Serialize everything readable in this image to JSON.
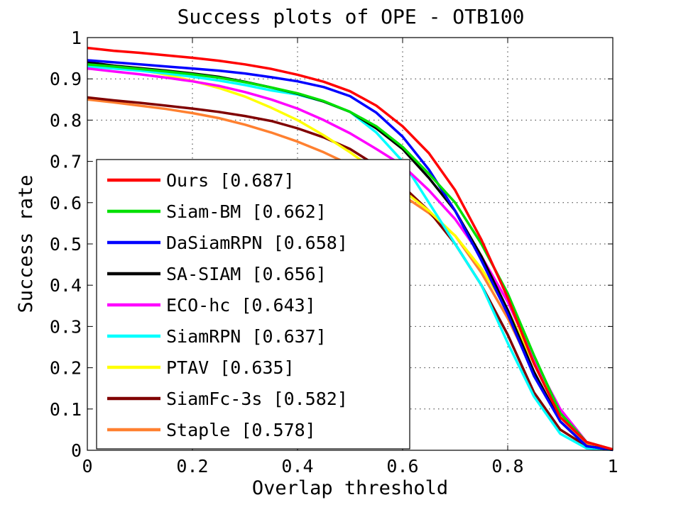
{
  "chart_data": {
    "type": "line",
    "title": "Success plots of OPE - OTB100",
    "xlabel": "Overlap threshold",
    "ylabel": "Success rate",
    "xlim": [
      0,
      1
    ],
    "ylim": [
      0,
      1
    ],
    "xticks": [
      0,
      0.2,
      0.4,
      0.6,
      0.8,
      1
    ],
    "xtick_labels": [
      "0",
      "0.2",
      "0.4",
      "0.6",
      "0.8",
      "1"
    ],
    "yticks": [
      0,
      0.1,
      0.2,
      0.3,
      0.4,
      0.5,
      0.6,
      0.7,
      0.8,
      0.9,
      1
    ],
    "ytick_labels": [
      "0",
      "0.1",
      "0.2",
      "0.3",
      "0.4",
      "0.5",
      "0.6",
      "0.7",
      "0.8",
      "0.9",
      "1"
    ],
    "grid": true,
    "legend_position": "bottom-left",
    "x": [
      0,
      0.05,
      0.1,
      0.15,
      0.2,
      0.25,
      0.3,
      0.35,
      0.4,
      0.45,
      0.5,
      0.55,
      0.6,
      0.65,
      0.7,
      0.75,
      0.8,
      0.85,
      0.9,
      0.95,
      1
    ],
    "series": [
      {
        "name": "Ours [0.687]",
        "color": "#ff0000",
        "values": [
          0.975,
          0.968,
          0.963,
          0.957,
          0.951,
          0.944,
          0.935,
          0.924,
          0.91,
          0.893,
          0.87,
          0.835,
          0.785,
          0.72,
          0.63,
          0.51,
          0.37,
          0.21,
          0.08,
          0.02,
          0.002
        ]
      },
      {
        "name": "Siam-BM [0.662]",
        "color": "#00e000",
        "values": [
          0.935,
          0.93,
          0.924,
          0.918,
          0.911,
          0.903,
          0.892,
          0.879,
          0.865,
          0.846,
          0.82,
          0.785,
          0.735,
          0.67,
          0.6,
          0.5,
          0.38,
          0.23,
          0.09,
          0.02,
          0.002
        ]
      },
      {
        "name": "DaSiamRPN [0.658]",
        "color": "#0000ff",
        "values": [
          0.945,
          0.94,
          0.935,
          0.93,
          0.925,
          0.92,
          0.913,
          0.904,
          0.894,
          0.88,
          0.858,
          0.818,
          0.76,
          0.68,
          0.58,
          0.46,
          0.33,
          0.18,
          0.07,
          0.01,
          0.001
        ]
      },
      {
        "name": "SA-SIAM [0.656]",
        "color": "#000000",
        "values": [
          0.94,
          0.932,
          0.926,
          0.92,
          0.913,
          0.905,
          0.893,
          0.879,
          0.864,
          0.845,
          0.82,
          0.78,
          0.73,
          0.66,
          0.58,
          0.47,
          0.34,
          0.19,
          0.07,
          0.01,
          0.001
        ]
      },
      {
        "name": "ECO-hc [0.643]",
        "color": "#ff00ff",
        "values": [
          0.925,
          0.918,
          0.911,
          0.903,
          0.894,
          0.883,
          0.868,
          0.85,
          0.828,
          0.8,
          0.768,
          0.73,
          0.69,
          0.63,
          0.56,
          0.47,
          0.36,
          0.22,
          0.1,
          0.02,
          0.002
        ]
      },
      {
        "name": "SiamRPN [0.637]",
        "color": "#00ffff",
        "values": [
          0.93,
          0.925,
          0.92,
          0.913,
          0.905,
          0.896,
          0.885,
          0.872,
          0.862,
          0.845,
          0.82,
          0.77,
          0.7,
          0.6,
          0.5,
          0.4,
          0.26,
          0.13,
          0.04,
          0.005,
          0.001
        ]
      },
      {
        "name": "PTAV [0.635]",
        "color": "#ffff00",
        "values": [
          0.94,
          0.932,
          0.922,
          0.91,
          0.895,
          0.878,
          0.857,
          0.83,
          0.8,
          0.763,
          0.722,
          0.676,
          0.63,
          0.58,
          0.52,
          0.44,
          0.34,
          0.21,
          0.09,
          0.02,
          0.002
        ]
      },
      {
        "name": "SiamFc-3s [0.582]",
        "color": "#800000",
        "values": [
          0.855,
          0.848,
          0.842,
          0.835,
          0.828,
          0.82,
          0.81,
          0.798,
          0.78,
          0.758,
          0.73,
          0.69,
          0.64,
          0.58,
          0.5,
          0.4,
          0.28,
          0.14,
          0.05,
          0.01,
          0.001
        ]
      },
      {
        "name": "Staple [0.578]",
        "color": "#ff8030",
        "values": [
          0.85,
          0.843,
          0.835,
          0.827,
          0.817,
          0.805,
          0.789,
          0.77,
          0.748,
          0.722,
          0.692,
          0.656,
          0.618,
          0.575,
          0.52,
          0.43,
          0.32,
          0.19,
          0.07,
          0.015,
          0.001
        ]
      }
    ]
  }
}
